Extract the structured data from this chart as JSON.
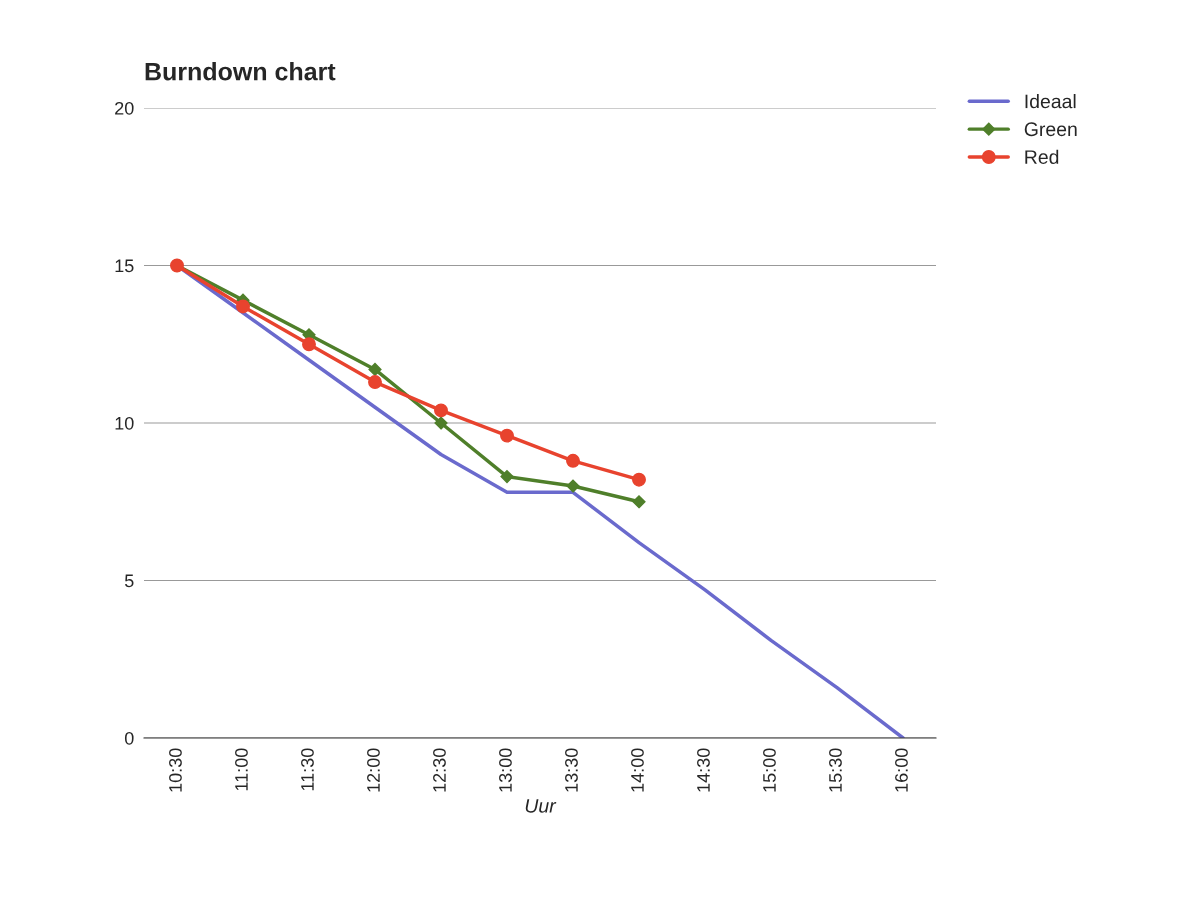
{
  "chart_data": {
    "type": "line",
    "title": "Burndown chart",
    "xlabel": "Uur",
    "categories": [
      "10:30",
      "11:00",
      "11:30",
      "12:00",
      "12:30",
      "13:00",
      "13:30",
      "14:00",
      "14:30",
      "15:00",
      "15:30",
      "16:00"
    ],
    "series": [
      {
        "name": "Ideaal",
        "color": "#6a6acd",
        "marker": "none",
        "values": [
          15,
          13.5,
          12,
          10.5,
          9,
          7.8,
          7.8,
          6.2,
          4.7,
          3.1,
          1.6,
          0
        ]
      },
      {
        "name": "Green",
        "color": "#4f7f2a",
        "marker": "diamond",
        "values": [
          15,
          13.9,
          12.8,
          11.7,
          10,
          8.3,
          8,
          7.5,
          null,
          null,
          null,
          null
        ]
      },
      {
        "name": "Red",
        "color": "#e8432e",
        "marker": "circle",
        "values": [
          15,
          13.7,
          12.5,
          11.3,
          10.4,
          9.6,
          8.8,
          8.2,
          null,
          null,
          null,
          null
        ]
      }
    ],
    "ylim": [
      0,
      20
    ],
    "yticks": [
      0,
      5,
      10,
      15,
      20
    ],
    "grid": "y",
    "legend": "top right"
  }
}
